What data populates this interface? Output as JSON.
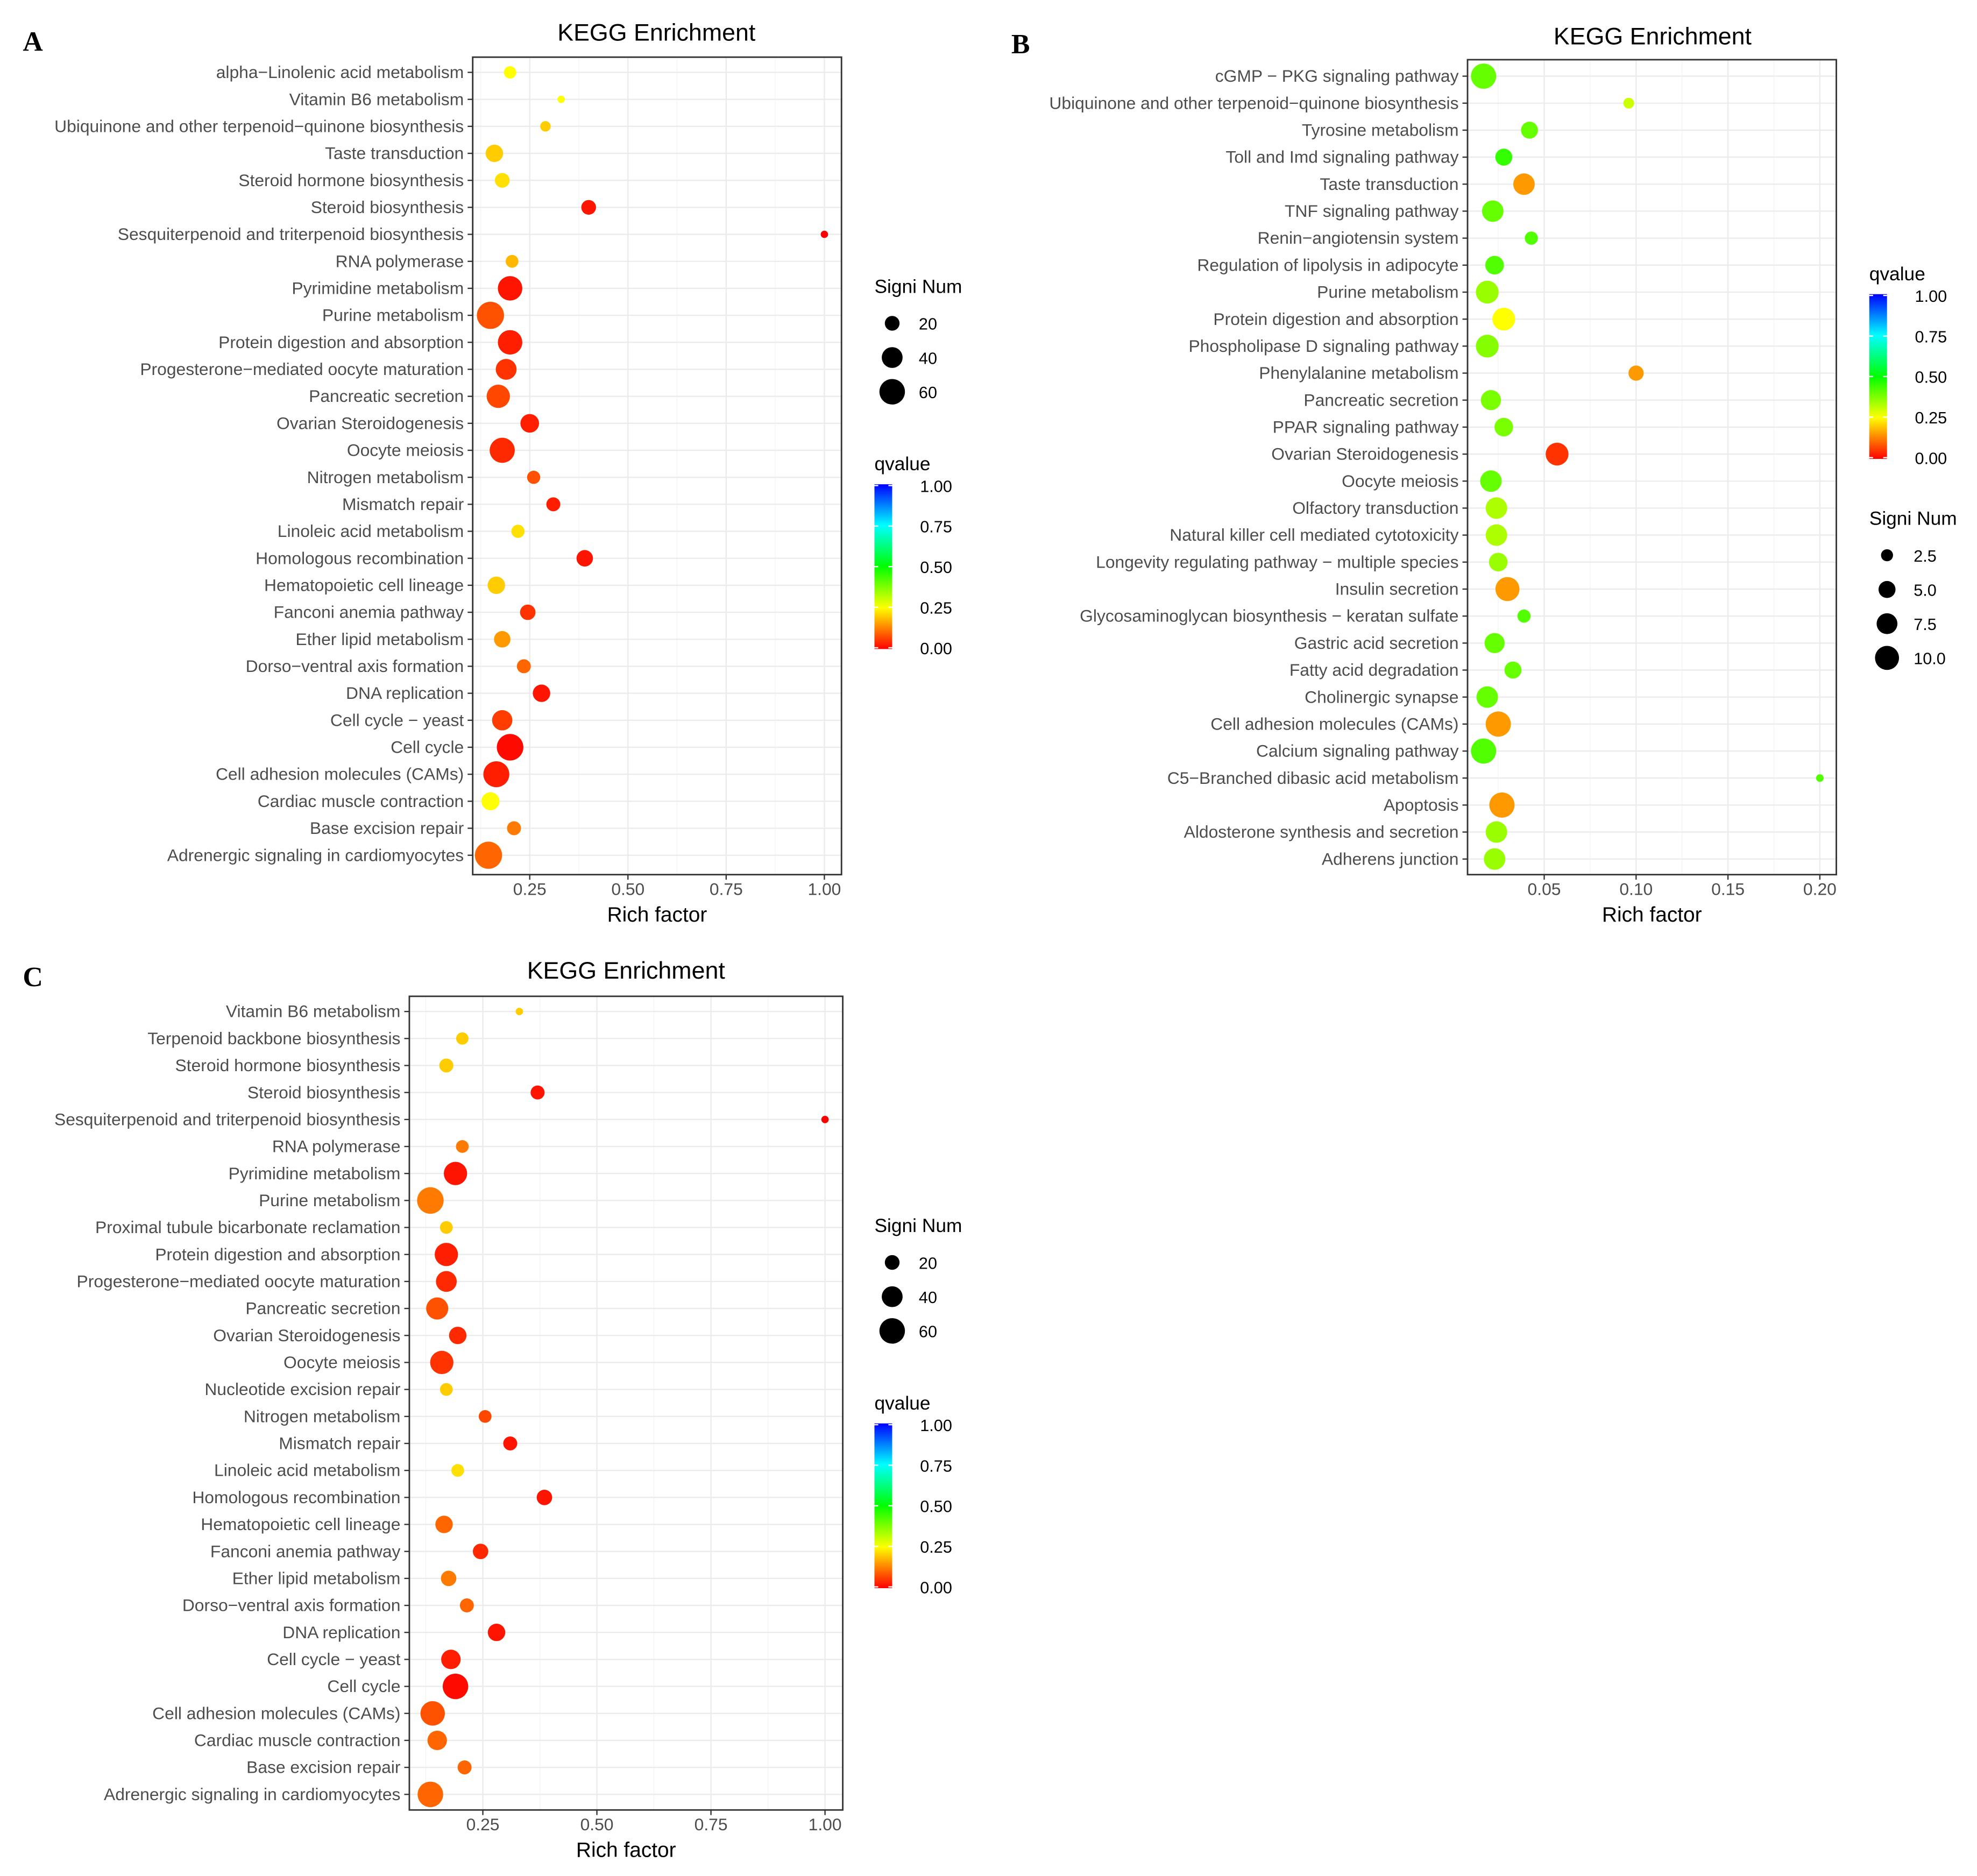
{
  "chart_data": [
    {
      "panel": "A",
      "type": "scatter",
      "title": "KEGG Enrichment",
      "xlabel": "Rich factor",
      "xticks": [
        "0.25",
        "0.50",
        "0.75",
        "1.00"
      ],
      "xtick_values": [
        0.25,
        0.5,
        0.75,
        1.0
      ],
      "xlim": [
        0.105,
        1.04
      ],
      "size_legend": {
        "title": "Signi Num",
        "values": [
          20,
          40,
          60
        ],
        "labels": [
          "20",
          "40",
          "60"
        ]
      },
      "color_legend": {
        "title": "qvalue",
        "labels": [
          "1.00",
          "0.75",
          "0.50",
          "0.25",
          "0.00"
        ],
        "values": [
          1,
          0.75,
          0.5,
          0.25,
          0
        ]
      },
      "legend_order": [
        "size",
        "color"
      ],
      "points": [
        {
          "term": "alpha−Linolenic acid metabolism",
          "rich": 0.2,
          "num": 14,
          "q": 0.25
        },
        {
          "term": "Vitamin B6 metabolism",
          "rich": 0.33,
          "num": 5,
          "q": 0.25
        },
        {
          "term": "Ubiquinone and other terpenoid−quinone biosynthesis",
          "rich": 0.29,
          "num": 10,
          "q": 0.2
        },
        {
          "term": "Taste transduction",
          "rich": 0.16,
          "num": 28,
          "q": 0.2
        },
        {
          "term": "Steroid hormone biosynthesis",
          "rich": 0.18,
          "num": 20,
          "q": 0.22
        },
        {
          "term": "Steroid biosynthesis",
          "rich": 0.4,
          "num": 20,
          "q": 0.02
        },
        {
          "term": "Sesquiterpenoid and triterpenoid biosynthesis",
          "rich": 1.0,
          "num": 5,
          "q": 0.0
        },
        {
          "term": "RNA polymerase",
          "rich": 0.205,
          "num": 15,
          "q": 0.18
        },
        {
          "term": "Pyrimidine metabolism",
          "rich": 0.2,
          "num": 55,
          "q": 0.02
        },
        {
          "term": "Purine metabolism",
          "rich": 0.15,
          "num": 68,
          "q": 0.08
        },
        {
          "term": "Protein digestion and absorption",
          "rich": 0.2,
          "num": 55,
          "q": 0.03
        },
        {
          "term": "Progesterone−mediated oocyte maturation",
          "rich": 0.19,
          "num": 40,
          "q": 0.05
        },
        {
          "term": "Pancreatic secretion",
          "rich": 0.17,
          "num": 50,
          "q": 0.07
        },
        {
          "term": "Ovarian Steroidogenesis",
          "rich": 0.25,
          "num": 32,
          "q": 0.03
        },
        {
          "term": "Oocyte meiosis",
          "rich": 0.18,
          "num": 58,
          "q": 0.04
        },
        {
          "term": "Nitrogen metabolism",
          "rich": 0.26,
          "num": 16,
          "q": 0.08
        },
        {
          "term": "Mismatch repair",
          "rich": 0.31,
          "num": 18,
          "q": 0.03
        },
        {
          "term": "Linoleic acid metabolism",
          "rich": 0.22,
          "num": 16,
          "q": 0.22
        },
        {
          "term": "Homologous recombination",
          "rich": 0.39,
          "num": 25,
          "q": 0.02
        },
        {
          "term": "Hematopoietic cell lineage",
          "rich": 0.165,
          "num": 28,
          "q": 0.2
        },
        {
          "term": "Fanconi anemia pathway",
          "rich": 0.245,
          "num": 22,
          "q": 0.05
        },
        {
          "term": "Ether lipid metabolism",
          "rich": 0.18,
          "num": 25,
          "q": 0.15
        },
        {
          "term": "Dorso−ventral axis formation",
          "rich": 0.235,
          "num": 18,
          "q": 0.1
        },
        {
          "term": "DNA replication",
          "rich": 0.28,
          "num": 28,
          "q": 0.02
        },
        {
          "term": "Cell cycle − yeast",
          "rich": 0.18,
          "num": 38,
          "q": 0.06
        },
        {
          "term": "Cell cycle",
          "rich": 0.2,
          "num": 65,
          "q": 0.01
        },
        {
          "term": "Cell adhesion molecules (CAMs)",
          "rich": 0.165,
          "num": 62,
          "q": 0.03
        },
        {
          "term": "Cardiac muscle contraction",
          "rich": 0.15,
          "num": 30,
          "q": 0.25
        },
        {
          "term": "Base excision repair",
          "rich": 0.21,
          "num": 18,
          "q": 0.12
        },
        {
          "term": "Adrenergic signaling in cardiomyocytes",
          "rich": 0.145,
          "num": 68,
          "q": 0.1
        }
      ]
    },
    {
      "panel": "B",
      "type": "scatter",
      "title": "KEGG Enrichment",
      "xlabel": "Rich factor",
      "xticks": [
        "0.05",
        "0.10",
        "0.15",
        "0.20"
      ],
      "xtick_values": [
        0.05,
        0.1,
        0.15,
        0.2
      ],
      "xlim": [
        0.008,
        0.209
      ],
      "size_legend": {
        "title": "Signi Num",
        "values": [
          2.5,
          5,
          7.5,
          10
        ],
        "labels": [
          "2.5",
          "5.0",
          "7.5",
          "10.0"
        ]
      },
      "color_legend": {
        "title": "qvalue",
        "labels": [
          "1.00",
          "0.75",
          "0.50",
          "0.25",
          "0.00"
        ],
        "values": [
          1,
          0.75,
          0.5,
          0.25,
          0
        ]
      },
      "legend_order": [
        "color",
        "size"
      ],
      "points": [
        {
          "term": "cGMP − PKG signaling pathway",
          "rich": 0.017,
          "num": 11,
          "q": 0.4
        },
        {
          "term": "Ubiquinone and other terpenoid−quinone biosynthesis",
          "rich": 0.096,
          "num": 2,
          "q": 0.3
        },
        {
          "term": "Tyrosine metabolism",
          "rich": 0.042,
          "num": 5,
          "q": 0.4
        },
        {
          "term": "Toll and Imd signaling pathway",
          "rich": 0.028,
          "num": 5,
          "q": 0.45
        },
        {
          "term": "Taste transduction",
          "rich": 0.039,
          "num": 8,
          "q": 0.15
        },
        {
          "term": "TNF signaling pathway",
          "rich": 0.022,
          "num": 8,
          "q": 0.4
        },
        {
          "term": "Renin−angiotensin system",
          "rich": 0.043,
          "num": 3,
          "q": 0.42
        },
        {
          "term": "Regulation of lipolysis in adipocyte",
          "rich": 0.023,
          "num": 6,
          "q": 0.42
        },
        {
          "term": "Purine metabolism",
          "rich": 0.019,
          "num": 9,
          "q": 0.35
        },
        {
          "term": "Protein digestion and absorption",
          "rich": 0.028,
          "num": 9,
          "q": 0.25
        },
        {
          "term": "Phospholipase D signaling pathway",
          "rich": 0.019,
          "num": 9,
          "q": 0.37
        },
        {
          "term": "Phenylalanine metabolism",
          "rich": 0.1,
          "num": 4,
          "q": 0.15
        },
        {
          "term": "Pancreatic secretion",
          "rich": 0.021,
          "num": 7,
          "q": 0.38
        },
        {
          "term": "PPAR signaling pathway",
          "rich": 0.028,
          "num": 6,
          "q": 0.38
        },
        {
          "term": "Ovarian Steroidogenesis",
          "rich": 0.057,
          "num": 9,
          "q": 0.05
        },
        {
          "term": "Oocyte meiosis",
          "rich": 0.021,
          "num": 8,
          "q": 0.4
        },
        {
          "term": "Olfactory transduction",
          "rich": 0.024,
          "num": 8,
          "q": 0.33
        },
        {
          "term": "Natural killer cell mediated cytotoxicity",
          "rich": 0.024,
          "num": 8,
          "q": 0.33
        },
        {
          "term": "Longevity regulating pathway − multiple species",
          "rich": 0.025,
          "num": 6,
          "q": 0.35
        },
        {
          "term": "Insulin secretion",
          "rich": 0.03,
          "num": 10,
          "q": 0.15
        },
        {
          "term": "Glycosaminoglycan biosynthesis − keratan sulfate",
          "rich": 0.039,
          "num": 3,
          "q": 0.42
        },
        {
          "term": "Gastric acid secretion",
          "rich": 0.023,
          "num": 7,
          "q": 0.4
        },
        {
          "term": "Fatty acid degradation",
          "rich": 0.033,
          "num": 5,
          "q": 0.4
        },
        {
          "term": "Cholinergic synapse",
          "rich": 0.019,
          "num": 8,
          "q": 0.4
        },
        {
          "term": "Cell adhesion molecules (CAMs)",
          "rich": 0.025,
          "num": 11,
          "q": 0.15
        },
        {
          "term": "Calcium signaling pathway",
          "rich": 0.017,
          "num": 11,
          "q": 0.42
        },
        {
          "term": "C5−Branched dibasic acid metabolism",
          "rich": 0.2,
          "num": 1,
          "q": 0.42
        },
        {
          "term": "Apoptosis",
          "rich": 0.027,
          "num": 11,
          "q": 0.15
        },
        {
          "term": "Aldosterone synthesis and secretion",
          "rich": 0.024,
          "num": 8,
          "q": 0.35
        },
        {
          "term": "Adherens junction",
          "rich": 0.023,
          "num": 8,
          "q": 0.35
        }
      ]
    },
    {
      "panel": "C",
      "type": "scatter",
      "title": "KEGG Enrichment",
      "xlabel": "Rich factor",
      "xticks": [
        "0.25",
        "0.50",
        "0.75",
        "1.00"
      ],
      "xtick_values": [
        0.25,
        0.5,
        0.75,
        1.0
      ],
      "xlim": [
        0.09,
        1.04
      ],
      "size_legend": {
        "title": "Signi Num",
        "values": [
          20,
          40,
          60
        ],
        "labels": [
          "20",
          "40",
          "60"
        ]
      },
      "color_legend": {
        "title": "qvalue",
        "labels": [
          "1.00",
          "0.75",
          "0.50",
          "0.25",
          "0.00"
        ],
        "values": [
          1,
          0.75,
          0.5,
          0.25,
          0
        ]
      },
      "legend_order": [
        "size",
        "color"
      ],
      "points": [
        {
          "term": "Vitamin B6 metabolism",
          "rich": 0.33,
          "num": 5,
          "q": 0.2
        },
        {
          "term": "Terpenoid backbone biosynthesis",
          "rich": 0.205,
          "num": 14,
          "q": 0.2
        },
        {
          "term": "Steroid hormone biosynthesis",
          "rich": 0.17,
          "num": 18,
          "q": 0.2
        },
        {
          "term": "Steroid biosynthesis",
          "rich": 0.37,
          "num": 18,
          "q": 0.02
        },
        {
          "term": "Sesquiterpenoid and triterpenoid biosynthesis",
          "rich": 1.0,
          "num": 5,
          "q": 0.0
        },
        {
          "term": "RNA polymerase",
          "rich": 0.205,
          "num": 15,
          "q": 0.12
        },
        {
          "term": "Pyrimidine metabolism",
          "rich": 0.19,
          "num": 50,
          "q": 0.02
        },
        {
          "term": "Purine metabolism",
          "rich": 0.135,
          "num": 65,
          "q": 0.12
        },
        {
          "term": "Proximal tubule bicarbonate reclamation",
          "rich": 0.17,
          "num": 15,
          "q": 0.2
        },
        {
          "term": "Protein digestion and absorption",
          "rich": 0.17,
          "num": 50,
          "q": 0.03
        },
        {
          "term": "Progesterone−mediated oocyte maturation",
          "rich": 0.17,
          "num": 40,
          "q": 0.04
        },
        {
          "term": "Pancreatic secretion",
          "rich": 0.15,
          "num": 45,
          "q": 0.08
        },
        {
          "term": "Ovarian Steroidogenesis",
          "rich": 0.195,
          "num": 28,
          "q": 0.04
        },
        {
          "term": "Oocyte meiosis",
          "rich": 0.16,
          "num": 50,
          "q": 0.05
        },
        {
          "term": "Nucleotide excision repair",
          "rich": 0.17,
          "num": 15,
          "q": 0.2
        },
        {
          "term": "Nitrogen metabolism",
          "rich": 0.255,
          "num": 15,
          "q": 0.07
        },
        {
          "term": "Mismatch repair",
          "rich": 0.31,
          "num": 18,
          "q": 0.02
        },
        {
          "term": "Linoleic acid metabolism",
          "rich": 0.195,
          "num": 15,
          "q": 0.22
        },
        {
          "term": "Homologous recombination",
          "rich": 0.385,
          "num": 22,
          "q": 0.02
        },
        {
          "term": "Hematopoietic cell lineage",
          "rich": 0.165,
          "num": 28,
          "q": 0.1
        },
        {
          "term": "Fanconi anemia pathway",
          "rich": 0.245,
          "num": 22,
          "q": 0.04
        },
        {
          "term": "Ether lipid metabolism",
          "rich": 0.175,
          "num": 22,
          "q": 0.12
        },
        {
          "term": "Dorso−ventral axis formation",
          "rich": 0.215,
          "num": 18,
          "q": 0.1
        },
        {
          "term": "DNA replication",
          "rich": 0.28,
          "num": 28,
          "q": 0.02
        },
        {
          "term": "Cell cycle − yeast",
          "rich": 0.18,
          "num": 35,
          "q": 0.03
        },
        {
          "term": "Cell cycle",
          "rich": 0.19,
          "num": 60,
          "q": 0.01
        },
        {
          "term": "Cell adhesion molecules (CAMs)",
          "rich": 0.14,
          "num": 55,
          "q": 0.08
        },
        {
          "term": "Cardiac muscle contraction",
          "rich": 0.15,
          "num": 35,
          "q": 0.1
        },
        {
          "term": "Base excision repair",
          "rich": 0.21,
          "num": 18,
          "q": 0.1
        },
        {
          "term": "Adrenergic signaling in cardiomyocytes",
          "rich": 0.135,
          "num": 60,
          "q": 0.1
        }
      ]
    }
  ],
  "panel_letters": [
    "A",
    "B",
    "C"
  ],
  "colors": {
    "q_low": "#ff0000",
    "q_mid": "#00ff00",
    "q_high": "#0000ff",
    "grid": "#ebebeb",
    "border": "#333333"
  }
}
